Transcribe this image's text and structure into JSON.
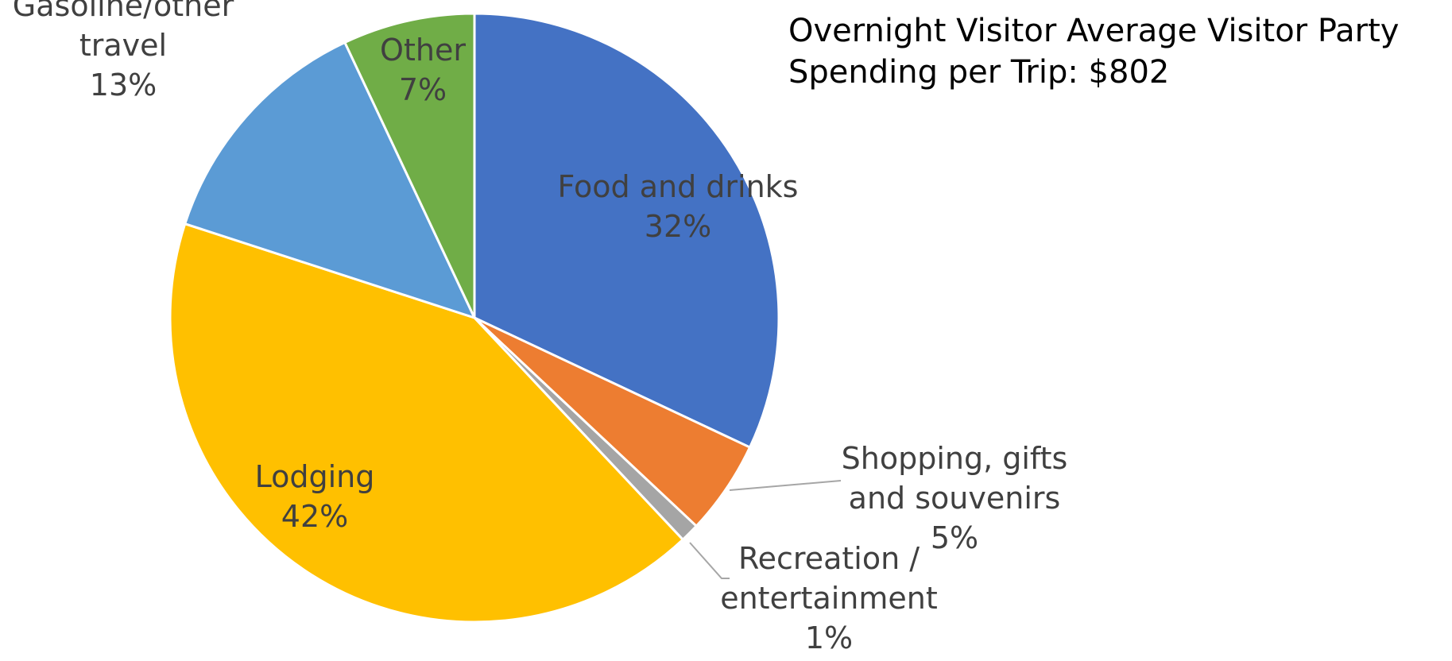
{
  "chart_data": {
    "type": "pie",
    "title_lines": [
      "Overnight Visitor Average Visitor Party",
      "Spending per Trip: $802"
    ],
    "start_angle_deg": 0,
    "direction": "clockwise",
    "slices": [
      {
        "name": "Food and drinks",
        "label_lines": [
          "Food and drinks"
        ],
        "percent_label": "32%",
        "value": 32,
        "color": "#4472C4"
      },
      {
        "name": "Shopping, gifts and souvenirs",
        "label_lines": [
          "Shopping, gifts",
          "and souvenirs"
        ],
        "percent_label": "5%",
        "value": 5,
        "color": "#ED7D31"
      },
      {
        "name": "Recreation / entertainment",
        "label_lines": [
          "Recreation /",
          "entertainment"
        ],
        "percent_label": "1%",
        "value": 1,
        "color": "#A5A5A5"
      },
      {
        "name": "Lodging",
        "label_lines": [
          "Lodging"
        ],
        "percent_label": "42%",
        "value": 42,
        "color": "#FFC000"
      },
      {
        "name": "Gasoline/other travel",
        "label_lines": [
          "Gasoline/other",
          "travel"
        ],
        "percent_label": "13%",
        "value": 13,
        "color": "#5B9BD5"
      },
      {
        "name": "Other",
        "label_lines": [
          "Other"
        ],
        "percent_label": "7%",
        "value": 7,
        "color": "#70AD47"
      }
    ]
  }
}
